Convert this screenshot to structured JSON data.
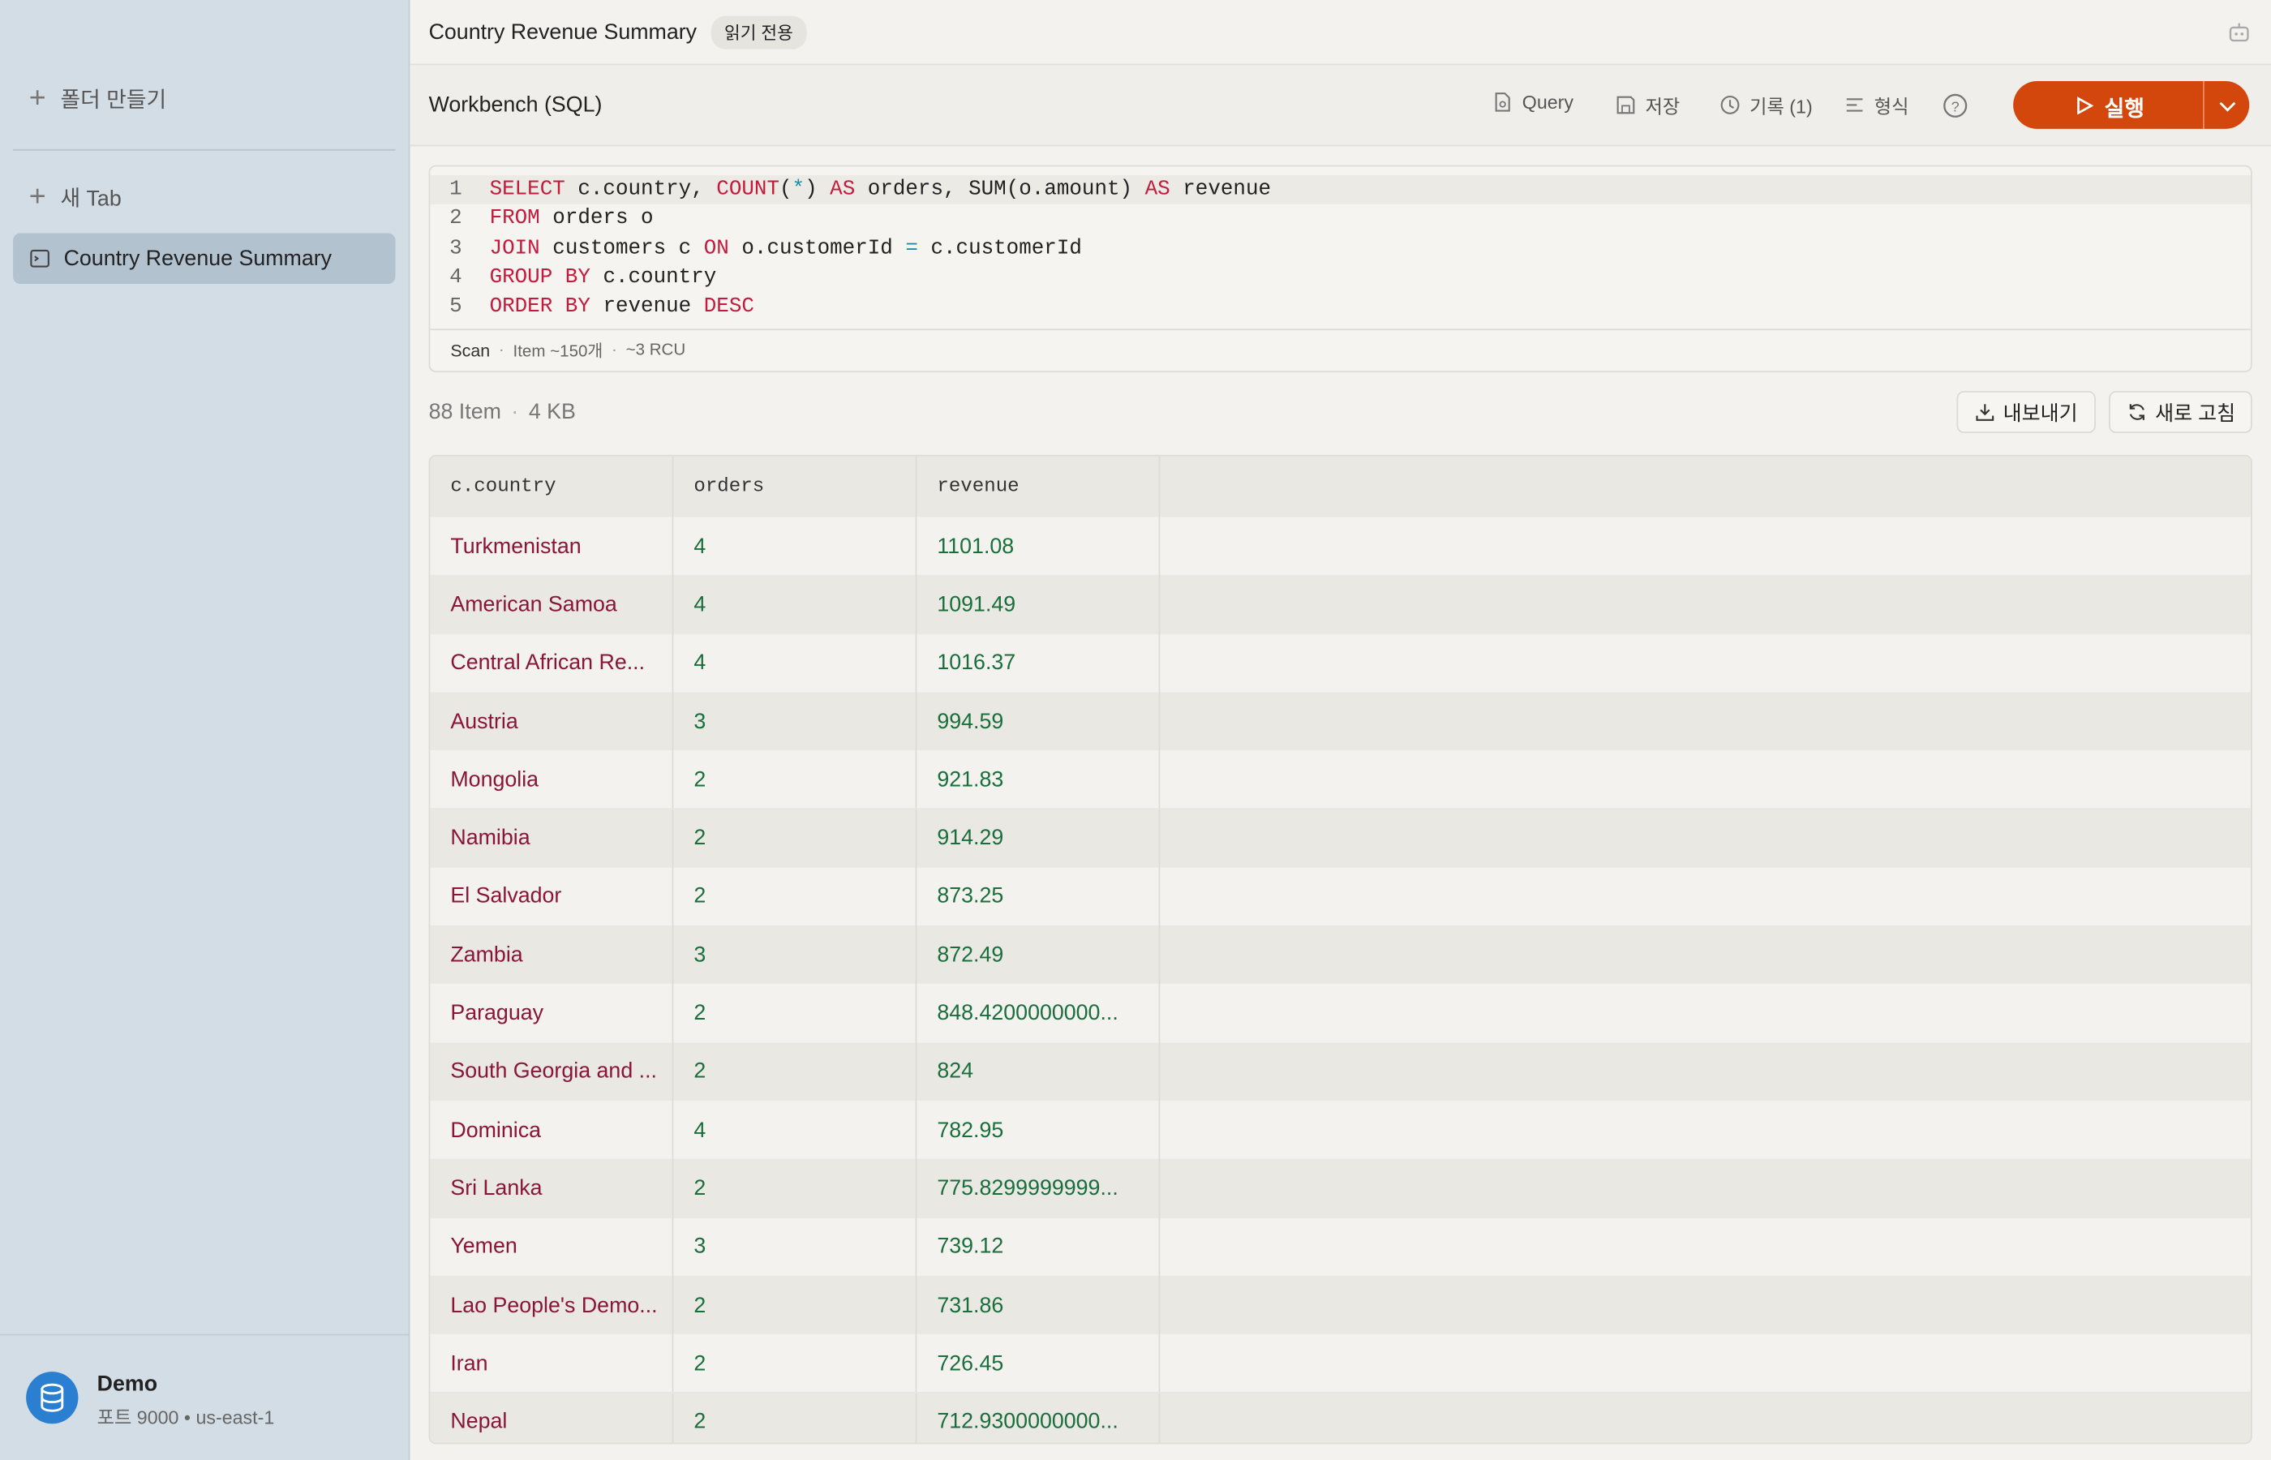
{
  "sidebar": {
    "create_folder": "폴더 만들기",
    "new_tab": "새 Tab",
    "tabs": [
      "Country Revenue Summary"
    ],
    "connection": {
      "name": "Demo",
      "detail": "포트 9000 • us-east-1"
    }
  },
  "header": {
    "title": "Country Revenue Summary",
    "badge": "읽기 전용"
  },
  "toolbar": {
    "title": "Workbench (SQL)",
    "buttons": [
      "Query",
      "저장",
      "기록 (1)",
      "형식"
    ],
    "run": "실행"
  },
  "editor": {
    "lines": [
      {
        "number": "1",
        "tokens": [
          {
            "text": "SELECT",
            "color": "#c41a3c"
          },
          {
            "text": " c.country, ",
            "color": "#222222"
          },
          {
            "text": "COUNT",
            "color": "#c41a3c"
          },
          {
            "text": "(",
            "color": "#222222"
          },
          {
            "text": "*",
            "color": "#1a8fa0"
          },
          {
            "text": ") ",
            "color": "#222222"
          },
          {
            "text": "AS",
            "color": "#c41a3c"
          },
          {
            "text": " orders, SUM(o.amount) ",
            "color": "#222222"
          },
          {
            "text": "AS",
            "color": "#c41a3c"
          },
          {
            "text": " revenue",
            "color": "#222222"
          }
        ]
      },
      {
        "number": "2",
        "tokens": [
          {
            "text": "FROM",
            "color": "#c41a3c"
          },
          {
            "text": " orders o",
            "color": "#222222"
          }
        ]
      },
      {
        "number": "3",
        "tokens": [
          {
            "text": "JOIN",
            "color": "#c41a3c"
          },
          {
            "text": " customers c ",
            "color": "#222222"
          },
          {
            "text": "ON",
            "color": "#c41a3c"
          },
          {
            "text": " o.customerId ",
            "color": "#222222"
          },
          {
            "text": "=",
            "color": "#1a8fa0"
          },
          {
            "text": " c.customerId",
            "color": "#222222"
          }
        ]
      },
      {
        "number": "4",
        "tokens": [
          {
            "text": "GROUP BY",
            "color": "#c41a3c"
          },
          {
            "text": " c.country",
            "color": "#222222"
          }
        ]
      },
      {
        "number": "5",
        "tokens": [
          {
            "text": "ORDER BY",
            "color": "#c41a3c"
          },
          {
            "text": " revenue ",
            "color": "#222222"
          },
          {
            "text": "DESC",
            "color": "#c41a3c"
          }
        ]
      }
    ],
    "status": [
      "Scan",
      "Item ~150개",
      "~3 RCU"
    ]
  },
  "results": {
    "summary": [
      "88 Item",
      "4 KB"
    ],
    "actions": [
      "내보내기",
      "새로 고침"
    ],
    "columns": [
      "c.country",
      "orders",
      "revenue"
    ],
    "rows": [
      [
        "Turkmenistan",
        "4",
        "1101.08"
      ],
      [
        "American Samoa",
        "4",
        "1091.49"
      ],
      [
        "Central African Re...",
        "4",
        "1016.37"
      ],
      [
        "Austria",
        "3",
        "994.59"
      ],
      [
        "Mongolia",
        "2",
        "921.83"
      ],
      [
        "Namibia",
        "2",
        "914.29"
      ],
      [
        "El Salvador",
        "2",
        "873.25"
      ],
      [
        "Zambia",
        "3",
        "872.49"
      ],
      [
        "Paraguay",
        "2",
        "848.4200000000..."
      ],
      [
        "South Georgia and ...",
        "2",
        "824"
      ],
      [
        "Dominica",
        "4",
        "782.95"
      ],
      [
        "Sri Lanka",
        "2",
        "775.8299999999..."
      ],
      [
        "Yemen",
        "3",
        "739.12"
      ],
      [
        "Lao People's Demo...",
        "2",
        "731.86"
      ],
      [
        "Iran",
        "2",
        "726.45"
      ],
      [
        "Nepal",
        "2",
        "712.9300000000..."
      ]
    ]
  }
}
